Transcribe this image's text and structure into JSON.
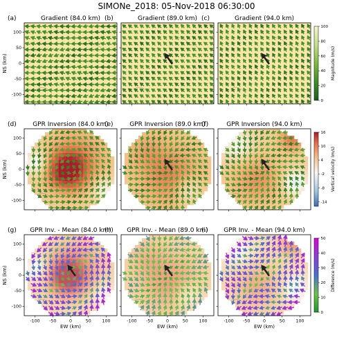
{
  "figure": {
    "title": "SIMONe_2018: 05-Nov-2018 06:30:00"
  },
  "chart_data": [
    {
      "id": "a",
      "letter": "(a)",
      "title": "Gradient (84.0 km)",
      "type": "vector-field",
      "row": 0,
      "col": 0,
      "field": "gradient",
      "altitude_km": 84.0,
      "xlim": [
        -130,
        130
      ],
      "ylim": [
        -130,
        130
      ],
      "mean_wind_arrow": false
    },
    {
      "id": "b",
      "letter": "(b)",
      "title": "Gradient (89.0 km)",
      "type": "vector-field",
      "row": 0,
      "col": 1,
      "field": "gradient",
      "altitude_km": 89.0,
      "xlim": [
        -130,
        130
      ],
      "ylim": [
        -130,
        130
      ],
      "mean_wind_arrow": true
    },
    {
      "id": "c",
      "letter": "(c)",
      "title": "Gradient (94.0 km)",
      "type": "vector-field",
      "row": 0,
      "col": 2,
      "field": "gradient",
      "altitude_km": 94.0,
      "xlim": [
        -130,
        130
      ],
      "ylim": [
        -130,
        130
      ],
      "mean_wind_arrow": true
    },
    {
      "id": "d",
      "letter": "(d)",
      "title": "GPR Inversion (84.0 km)",
      "type": "vector-field",
      "row": 1,
      "col": 0,
      "field": "gpr",
      "altitude_km": 84.0,
      "xlim": [
        -130,
        130
      ],
      "ylim": [
        -130,
        130
      ],
      "mean_wind_arrow": false
    },
    {
      "id": "e",
      "letter": "(e)",
      "title": "GPR Inversion (89.0 km)",
      "type": "vector-field",
      "row": 1,
      "col": 1,
      "field": "gpr",
      "altitude_km": 89.0,
      "xlim": [
        -130,
        130
      ],
      "ylim": [
        -130,
        130
      ],
      "mean_wind_arrow": true
    },
    {
      "id": "f",
      "letter": "(f)",
      "title": "GPR Inversion (94.0 km)",
      "type": "vector-field",
      "row": 1,
      "col": 2,
      "field": "gpr",
      "altitude_km": 94.0,
      "xlim": [
        -130,
        130
      ],
      "ylim": [
        -130,
        130
      ],
      "mean_wind_arrow": true
    },
    {
      "id": "g",
      "letter": "(g)",
      "title": "GPR Inv. - Mean (84.0 km)",
      "type": "vector-field",
      "row": 2,
      "col": 0,
      "field": "diff",
      "altitude_km": 84.0,
      "xlim": [
        -130,
        130
      ],
      "ylim": [
        -130,
        130
      ],
      "mean_wind_arrow": true
    },
    {
      "id": "h",
      "letter": "(h)",
      "title": "GPR Inv. - Mean (89.0 km)",
      "type": "vector-field",
      "row": 2,
      "col": 1,
      "field": "diff",
      "altitude_km": 89.0,
      "xlim": [
        -130,
        130
      ],
      "ylim": [
        -130,
        130
      ],
      "mean_wind_arrow": true
    },
    {
      "id": "i",
      "letter": "(i)",
      "title": "GPR Inv. - Mean (94.0 km)",
      "type": "vector-field",
      "row": 2,
      "col": 2,
      "field": "diff",
      "altitude_km": 94.0,
      "xlim": [
        -130,
        130
      ],
      "ylim": [
        -130,
        130
      ],
      "mean_wind_arrow": true
    }
  ],
  "axes": {
    "xlabel": "EW (km)",
    "ylabel": "NS (km)",
    "xticks": [
      -100,
      -50,
      0,
      50,
      100
    ],
    "yticks": [
      -100,
      -50,
      0,
      50,
      100
    ]
  },
  "colorbars": [
    {
      "row": 0,
      "label": "Magnitude (m/s)",
      "min": 0,
      "max": 100,
      "ticks": [
        0,
        20,
        40,
        60,
        80,
        100
      ],
      "colors": [
        "#1b5e20",
        "#3f8f2a",
        "#7dbb3a",
        "#c3e08a",
        "#f7f6c8"
      ]
    },
    {
      "row": 1,
      "label": "Vertical velocity (m/s)",
      "min": -16,
      "max": 16,
      "ticks": [
        -14,
        -8,
        -2,
        4,
        10,
        16
      ],
      "colors": [
        "#3b6db0",
        "#9ec5e1",
        "#f7f7f4",
        "#f5c48a",
        "#e8724a",
        "#b2182b"
      ]
    },
    {
      "row": 2,
      "label": "Difference (m/s)",
      "min": 0,
      "max": 50,
      "ticks": [
        0,
        10,
        20,
        30,
        40,
        50
      ],
      "colors": [
        "#1a9a2a",
        "#6fc14d",
        "#4a6fd0",
        "#8840d8",
        "#e000e0"
      ]
    }
  ]
}
